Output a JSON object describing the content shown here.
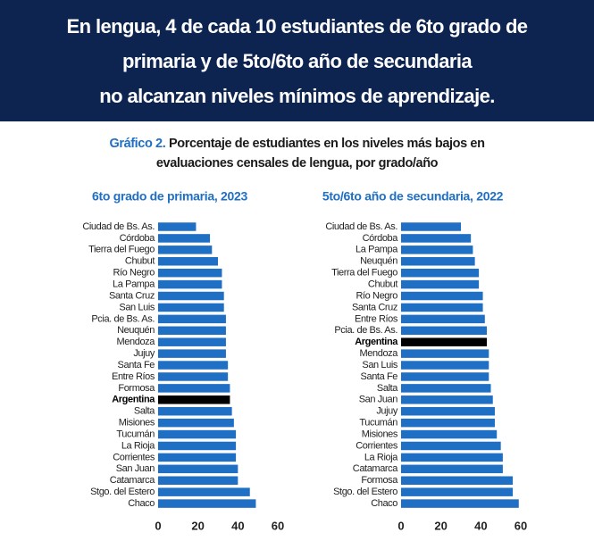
{
  "header": {
    "title_lines": [
      "En lengua, 4 de cada 10 estudiantes de 6to grado de",
      "primaria y de 5to/6to año de secundaria",
      "no alcanzan niveles mínimos de aprendizaje."
    ]
  },
  "figure": {
    "label": "Gráfico 2.",
    "caption": "Porcentaje de estudiantes en los niveles más bajos en evaluaciones censales de lengua, por grado/año"
  },
  "chart_data": [
    {
      "type": "bar",
      "orientation": "horizontal",
      "subtitle": "6to grado de primaria, 2023",
      "categories": [
        "Ciudad de Bs. As.",
        "Córdoba",
        "Tierra del Fuego",
        "Chubut",
        "Río Negro",
        "La Pampa",
        "Santa Cruz",
        "San Luis",
        "Pcia. de Bs. As.",
        "Neuquén",
        "Mendoza",
        "Jujuy",
        "Santa Fe",
        "Entre Ríos",
        "Formosa",
        "Argentina",
        "Salta",
        "Misiones",
        "Tucumán",
        "La Rioja",
        "Corrientes",
        "San Juan",
        "Catamarca",
        "Stgo. del Estero",
        "Chaco"
      ],
      "values": [
        19,
        26,
        27,
        30,
        32,
        32,
        33,
        33,
        34,
        34,
        34,
        34,
        35,
        35,
        36,
        36,
        37,
        38,
        39,
        39,
        39,
        40,
        40,
        46,
        49
      ],
      "color": "#1f6fc5",
      "bar_colors": [
        "#1f6fc5",
        "#1f6fc5",
        "#1f6fc5",
        "#1f6fc5",
        "#1f6fc5",
        "#1f6fc5",
        "#1f6fc5",
        "#1f6fc5",
        "#1f6fc5",
        "#1f6fc5",
        "#1f6fc5",
        "#1f6fc5",
        "#1f6fc5",
        "#1f6fc5",
        "#1f6fc5",
        "#000000",
        "#1f6fc5",
        "#1f6fc5",
        "#1f6fc5",
        "#1f6fc5",
        "#1f6fc5",
        "#1f6fc5",
        "#1f6fc5",
        "#1f6fc5",
        "#1f6fc5"
      ],
      "xlim": [
        0,
        60
      ],
      "xticks": [
        0,
        20,
        40,
        60
      ]
    },
    {
      "type": "bar",
      "orientation": "horizontal",
      "subtitle": "5to/6to año de secundaria, 2022",
      "categories": [
        "Ciudad de Bs. As.",
        "Córdoba",
        "La Pampa",
        "Neuquén",
        "Tierra del Fuego",
        "Chubut",
        "Río Negro",
        "Santa Cruz",
        "Entre Ríos",
        "Pcia. de Bs. As.",
        "Argentina",
        "Mendoza",
        "San Luis",
        "Santa Fe",
        "Salta",
        "San Juan",
        "Jujuy",
        "Tucumán",
        "Misiones",
        "Corrientes",
        "La Rioja",
        "Catamarca",
        "Formosa",
        "Stgo. del Estero",
        "Chaco"
      ],
      "values": [
        30,
        35,
        36,
        37,
        39,
        39,
        41,
        41,
        42,
        43,
        43,
        44,
        44,
        44,
        45,
        46,
        47,
        47,
        48,
        50,
        51,
        51,
        56,
        56,
        59
      ],
      "color": "#1f6fc5",
      "bar_colors": [
        "#1f6fc5",
        "#1f6fc5",
        "#1f6fc5",
        "#1f6fc5",
        "#1f6fc5",
        "#1f6fc5",
        "#1f6fc5",
        "#1f6fc5",
        "#1f6fc5",
        "#1f6fc5",
        "#000000",
        "#1f6fc5",
        "#1f6fc5",
        "#1f6fc5",
        "#1f6fc5",
        "#1f6fc5",
        "#1f6fc5",
        "#1f6fc5",
        "#1f6fc5",
        "#1f6fc5",
        "#1f6fc5",
        "#1f6fc5",
        "#1f6fc5",
        "#1f6fc5",
        "#1f6fc5"
      ],
      "xlim": [
        0,
        60
      ],
      "xticks": [
        0,
        20,
        40,
        60
      ]
    }
  ]
}
